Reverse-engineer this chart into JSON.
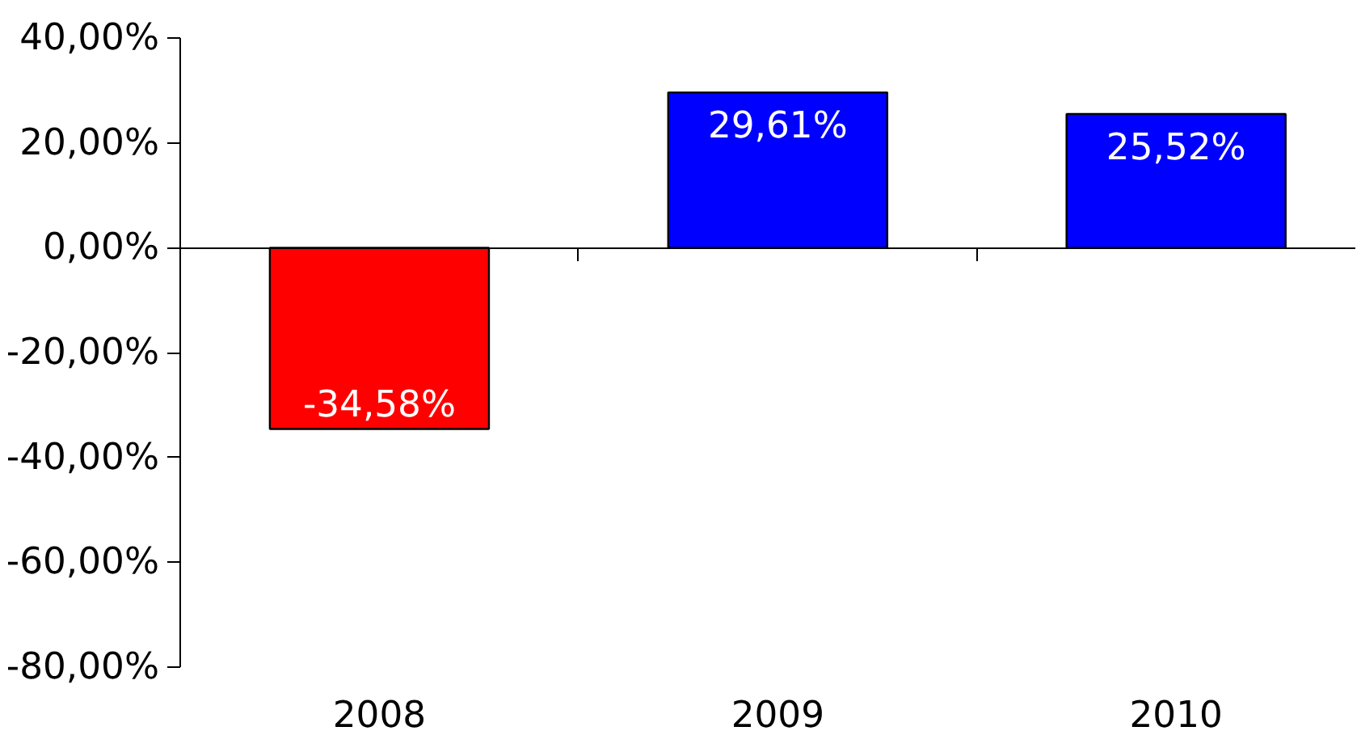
{
  "chart_data": {
    "type": "bar",
    "categories": [
      "2008",
      "2009",
      "2010"
    ],
    "values": [
      -34.58,
      29.61,
      25.52
    ],
    "colors": [
      "#ff0000",
      "#0000ff",
      "#0000ff"
    ],
    "value_labels": [
      "-34,58%",
      "29,61%",
      "25,52%"
    ],
    "ylim": [
      -80,
      40
    ],
    "yticks": [
      {
        "value": 40,
        "label": "40,00%"
      },
      {
        "value": 20,
        "label": "20,00%"
      },
      {
        "value": 0,
        "label": "0,00%"
      },
      {
        "value": -20,
        "label": "-20,00%"
      },
      {
        "value": -40,
        "label": "-40,00%"
      },
      {
        "value": -60,
        "label": "-60,00%"
      },
      {
        "value": -80,
        "label": "-80,00%"
      }
    ]
  }
}
